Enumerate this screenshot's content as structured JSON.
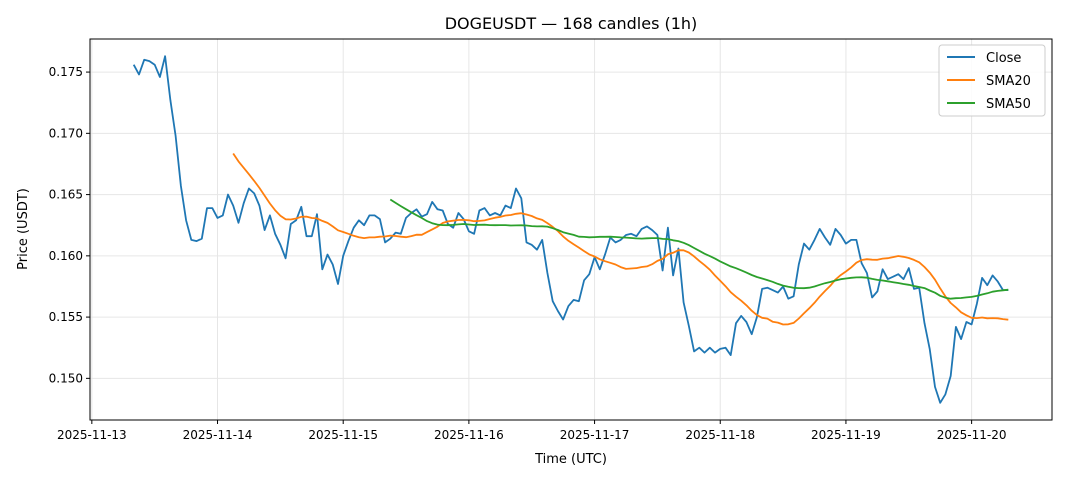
{
  "chart_data": {
    "type": "line",
    "title": "DOGEUSDT — 168 candles (1h)",
    "xlabel": "Time (UTC)",
    "ylabel": "Price (USDT)",
    "start_time": "2025-11-13T08:00:00Z",
    "interval_hours": 1,
    "ylim": [
      0.1466,
      0.1777
    ],
    "y_ticks": [
      "0.150",
      "0.155",
      "0.160",
      "0.165",
      "0.170",
      "0.175"
    ],
    "y_tick_values": [
      0.15,
      0.155,
      0.16,
      0.165,
      0.17,
      0.175
    ],
    "x_ticks": [
      "2025-11-13",
      "2025-11-14",
      "2025-11-15",
      "2025-11-16",
      "2025-11-17",
      "2025-11-18",
      "2025-11-19",
      "2025-11-20"
    ],
    "grid": true,
    "legend_position": "top-right",
    "series": [
      {
        "name": "Close",
        "color": "#1f77b4",
        "values": [
          0.1756,
          0.1748,
          0.176,
          0.1759,
          0.1756,
          0.1746,
          0.1763,
          0.1727,
          0.1698,
          0.1657,
          0.1629,
          0.1613,
          0.1612,
          0.1614,
          0.1639,
          0.1639,
          0.1631,
          0.1633,
          0.165,
          0.1641,
          0.1627,
          0.1643,
          0.1655,
          0.1651,
          0.1641,
          0.1621,
          0.1633,
          0.1618,
          0.1609,
          0.1598,
          0.1626,
          0.1629,
          0.164,
          0.1616,
          0.1616,
          0.1634,
          0.1589,
          0.1601,
          0.1593,
          0.1577,
          0.16,
          0.1612,
          0.1623,
          0.1629,
          0.1625,
          0.1633,
          0.1633,
          0.163,
          0.1611,
          0.1614,
          0.1619,
          0.1618,
          0.1631,
          0.1635,
          0.1638,
          0.1632,
          0.1634,
          0.1644,
          0.1638,
          0.1637,
          0.1626,
          0.1623,
          0.1635,
          0.163,
          0.162,
          0.1618,
          0.1637,
          0.1639,
          0.1633,
          0.1635,
          0.1633,
          0.1641,
          0.1639,
          0.1655,
          0.1647,
          0.1611,
          0.1609,
          0.1605,
          0.1613,
          0.1586,
          0.1563,
          0.1555,
          0.1548,
          0.1559,
          0.1564,
          0.1563,
          0.158,
          0.1585,
          0.1599,
          0.1589,
          0.1601,
          0.1615,
          0.1611,
          0.1613,
          0.1617,
          0.1618,
          0.1616,
          0.1622,
          0.1624,
          0.1621,
          0.1617,
          0.1588,
          0.1623,
          0.1584,
          0.1606,
          0.1562,
          0.1543,
          0.1522,
          0.1525,
          0.1521,
          0.1525,
          0.1521,
          0.1524,
          0.1525,
          0.1519,
          0.1545,
          0.1551,
          0.1546,
          0.1536,
          0.155,
          0.1573,
          0.1574,
          0.1572,
          0.157,
          0.1575,
          0.1565,
          0.1567,
          0.1593,
          0.161,
          0.1605,
          0.1613,
          0.1622,
          0.1615,
          0.1609,
          0.1622,
          0.1617,
          0.161,
          0.1613,
          0.1613,
          0.1594,
          0.1586,
          0.1566,
          0.1571,
          0.1589,
          0.1581,
          0.1583,
          0.1585,
          0.1581,
          0.159,
          0.1573,
          0.1574,
          0.1545,
          0.1524,
          0.1493,
          0.148,
          0.1487,
          0.1502,
          0.1542,
          0.1532,
          0.1546,
          0.1544,
          0.1561,
          0.1582,
          0.1576,
          0.1584,
          0.1579,
          0.1572,
          0.1572
        ]
      },
      {
        "name": "SMA20",
        "color": "#ff7f0e",
        "window": 20
      },
      {
        "name": "SMA50",
        "color": "#2ca02c",
        "window": 50
      }
    ]
  }
}
